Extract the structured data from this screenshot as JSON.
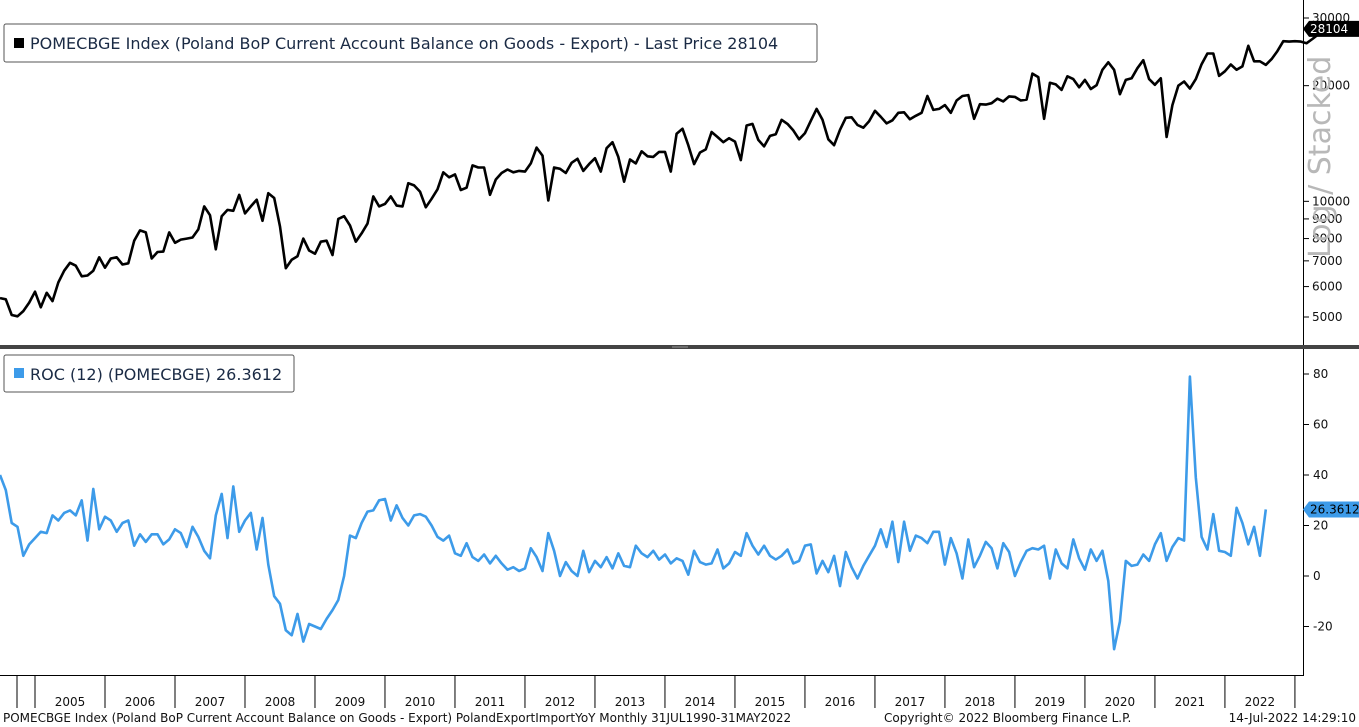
{
  "footer": {
    "left": "POMECBGE Index (Poland BoP Current Account Balance on Goods - Export) PolandExportImportYoY  Monthly 31JUL1990-31MAY2022",
    "center": "Copyright© 2022 Bloomberg Finance L.P.",
    "right": "14-Jul-2022 14:29:10"
  },
  "watermark": "Log / Stacked",
  "colors": {
    "export_line": "#000000",
    "roc_line": "#3d9be9",
    "last_badge_top": "#000000",
    "last_badge_bottom": "#3d9be9"
  },
  "chart_data": [
    {
      "type": "line",
      "legend": "POMECBGE Index (Poland BoP Current Account Balance on Goods - Export) - Last Price 28104",
      "last_value_label": "28104",
      "y_scale": "log",
      "ylim": [
        4300,
        31000
      ],
      "yticks": [
        "5000",
        "6000",
        "7000",
        "8000",
        "9000",
        "10000",
        "20000",
        "30000"
      ],
      "ytick_values": [
        5000,
        6000,
        7000,
        8000,
        9000,
        10000,
        20000,
        30000
      ],
      "x_start": "2004-07",
      "x_end": "2022-05",
      "series": [
        {
          "values": [
            5600,
            5560,
            5060,
            5020,
            5180,
            5450,
            5820,
            5300,
            5780,
            5500,
            6150,
            6600,
            6920,
            6800,
            6380,
            6410,
            6600,
            7150,
            6720,
            7100,
            7150,
            6850,
            6900,
            7900,
            8400,
            8300,
            7100,
            7380,
            7400,
            8300,
            7800,
            7950,
            8000,
            8050,
            8450,
            9700,
            9200,
            7500,
            9150,
            9500,
            9450,
            10400,
            9300,
            9700,
            10100,
            8900,
            10500,
            10200,
            8600,
            6700,
            7050,
            7200,
            8000,
            7450,
            7300,
            7850,
            7900,
            7250,
            9000,
            9150,
            8650,
            7850,
            8250,
            8750,
            10300,
            9700,
            9850,
            10300,
            9750,
            9700,
            11150,
            11000,
            10600,
            9650,
            10150,
            10750,
            11900,
            11550,
            11750,
            10700,
            10850,
            12400,
            12250,
            12250,
            10400,
            11400,
            11850,
            12100,
            11900,
            12000,
            11950,
            12550,
            13800,
            13150,
            10050,
            12250,
            12150,
            11850,
            12600,
            12900,
            12000,
            12500,
            12950,
            11950,
            13750,
            14250,
            13050,
            11250,
            12850,
            12550,
            13500,
            13100,
            13050,
            13450,
            13450,
            11950,
            15000,
            15450,
            14000,
            12500,
            13400,
            13650,
            15150,
            14700,
            14250,
            14600,
            14300,
            12800,
            15750,
            15900,
            14450,
            13900,
            14800,
            14950,
            16300,
            15900,
            15300,
            14500,
            15050,
            16200,
            17400,
            16300,
            14500,
            14000,
            15350,
            16500,
            16550,
            15800,
            15550,
            16150,
            17200,
            16600,
            15950,
            16250,
            17000,
            17050,
            16350,
            16700,
            17000,
            18800,
            17300,
            17400,
            17800,
            17000,
            18300,
            18800,
            18900,
            16400,
            17900,
            17850,
            18000,
            18500,
            18200,
            18750,
            18700,
            18300,
            18400,
            21500,
            21050,
            16400,
            20350,
            20150,
            19500,
            21150,
            20800,
            19800,
            20700,
            19600,
            20050,
            22000,
            23000,
            22000,
            19000,
            20700,
            20900,
            22200,
            23300,
            20800,
            20100,
            20900,
            14700,
            17800,
            20000,
            20500,
            19650,
            20800,
            22750,
            24250,
            24250,
            21200,
            21800,
            22700,
            22000,
            22450,
            25400,
            23150,
            23150,
            22650,
            23450,
            24600,
            26100,
            26050,
            26100,
            26050,
            25800,
            26450,
            27200,
            27350,
            28104
          ]
        }
      ]
    },
    {
      "type": "line",
      "legend": "ROC (12) (POMECBGE) 26.3612",
      "last_value_label": "26.3612",
      "ylim": [
        -39,
        89
      ],
      "yticks": [
        "-20",
        "0",
        "20",
        "40",
        "60",
        "80"
      ],
      "ytick_values": [
        -20,
        0,
        20,
        40,
        60,
        80
      ],
      "x_start": "2004-07",
      "x_end": "2022-05",
      "x_ticks": [
        "2005",
        "2006",
        "2007",
        "2008",
        "2009",
        "2010",
        "2011",
        "2012",
        "2013",
        "2014",
        "2015",
        "2016",
        "2017",
        "2018",
        "2019",
        "2020",
        "2021",
        "2022"
      ],
      "series": [
        {
          "values": [
            40,
            34,
            21,
            19.5,
            8,
            12.5,
            15,
            17.5,
            17,
            24,
            22,
            25,
            26,
            24,
            30,
            14,
            34.5,
            18.5,
            23.5,
            22,
            17.5,
            21,
            22,
            12,
            16.5,
            13.5,
            16.5,
            16.5,
            12.5,
            14.5,
            18.5,
            17,
            11.5,
            19.5,
            15.5,
            10,
            7,
            24,
            32.5,
            15,
            35.5,
            17.5,
            22,
            25,
            10.5,
            23,
            4.5,
            -8,
            -11,
            -21.5,
            -23.5,
            -15,
            -26,
            -19,
            -20,
            -21,
            -17,
            -13.5,
            -9.5,
            0,
            16,
            15,
            21,
            25.5,
            26,
            30,
            30.5,
            22,
            28,
            23,
            20,
            24,
            24.5,
            23.5,
            20,
            15.5,
            14,
            16,
            9,
            8,
            13,
            7.5,
            6,
            8.5,
            5,
            8,
            5,
            2.5,
            3.5,
            2,
            3,
            11,
            7.5,
            2,
            17,
            10,
            0,
            5.5,
            2,
            0,
            10,
            1.5,
            6,
            3.5,
            7.5,
            3,
            9,
            4,
            3.5,
            12,
            9,
            7.5,
            10,
            6.5,
            8.5,
            5,
            7,
            6,
            0.5,
            10,
            5.5,
            4.5,
            5,
            10.5,
            3,
            5,
            9.5,
            8,
            17,
            12,
            8.5,
            12,
            8,
            6.5,
            8,
            10.5,
            5,
            6,
            12,
            12.5,
            1,
            6,
            1.5,
            8,
            -4,
            9.5,
            3.5,
            -1,
            4,
            8,
            12,
            18.5,
            11.5,
            21.5,
            5.5,
            21.5,
            10,
            16,
            15,
            13,
            17.5,
            17.5,
            4.5,
            15,
            9,
            -1,
            14.5,
            3.5,
            8,
            13.5,
            11,
            3,
            13,
            9.5,
            0,
            5.5,
            10,
            11,
            10.5,
            12,
            -1,
            10.5,
            5,
            3,
            14.5,
            7,
            2.5,
            10.5,
            6,
            10,
            -2,
            -29,
            -18,
            6,
            4,
            4.5,
            8.5,
            6,
            12.5,
            17,
            6,
            11.5,
            15,
            14,
            79,
            39,
            15.5,
            10.5,
            24.5,
            10,
            9.5,
            8,
            27,
            21,
            12.5,
            19.5,
            8,
            26.3612
          ]
        }
      ]
    }
  ]
}
